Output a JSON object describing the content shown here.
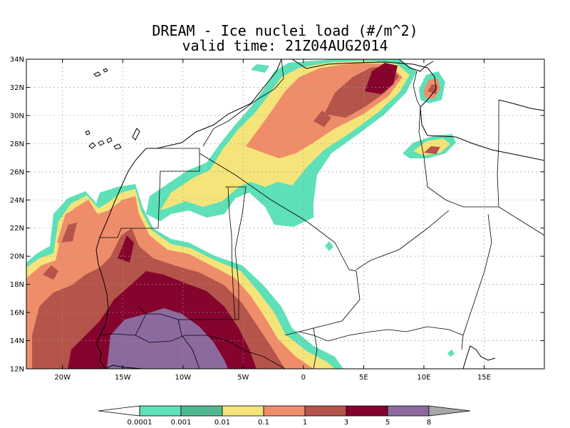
{
  "title": {
    "line1": "DREAM - Ice nuclei load (#/m^2)",
    "line2": "valid time: 21Z04AUG2014"
  },
  "map": {
    "lon_range": [
      -23,
      20
    ],
    "lat_range": [
      12,
      34
    ],
    "lat_ticks": [
      {
        "value": 12,
        "label": "12N"
      },
      {
        "value": 14,
        "label": "14N"
      },
      {
        "value": 16,
        "label": "16N"
      },
      {
        "value": 18,
        "label": "18N"
      },
      {
        "value": 20,
        "label": "20N"
      },
      {
        "value": 22,
        "label": "22N"
      },
      {
        "value": 24,
        "label": "24N"
      },
      {
        "value": 26,
        "label": "26N"
      },
      {
        "value": 28,
        "label": "28N"
      },
      {
        "value": 30,
        "label": "30N"
      },
      {
        "value": 32,
        "label": "32N"
      },
      {
        "value": 34,
        "label": "34N"
      }
    ],
    "lon_ticks": [
      {
        "value": -20,
        "label": "20W"
      },
      {
        "value": -15,
        "label": "15W"
      },
      {
        "value": -10,
        "label": "10W"
      },
      {
        "value": -5,
        "label": "5W"
      },
      {
        "value": 0,
        "label": "0"
      },
      {
        "value": 5,
        "label": "5E"
      },
      {
        "value": 10,
        "label": "10E"
      },
      {
        "value": 15,
        "label": "15E"
      }
    ],
    "grid": true
  },
  "colorbar": {
    "colors": [
      "#5ee0b8",
      "#4fb890",
      "#f5e47a",
      "#ef8d6a",
      "#b5544a",
      "#85042e",
      "#8c6a9e"
    ],
    "labels": [
      "0.0001",
      "0.001",
      "0.01",
      "0.1",
      "1",
      "3",
      "5",
      "8"
    ],
    "low_end_color": "#ffffff",
    "high_end_color": "#a8a8a8"
  },
  "field_colors": {
    "l1": "#5ee0b8",
    "l2": "#4fb890",
    "l3": "#f5e47a",
    "l4": "#ef8d6a",
    "l5": "#b5544a",
    "l6": "#85042e",
    "l7": "#8c6a9e"
  }
}
